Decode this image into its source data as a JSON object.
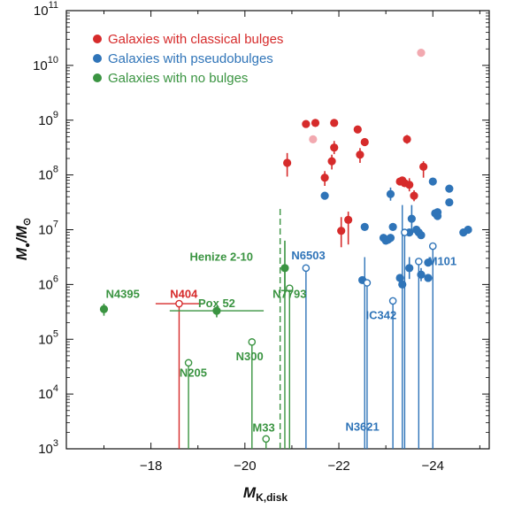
{
  "chart_data": {
    "type": "scatter",
    "xlabel": "M",
    "xlabel_sub": "K,disk",
    "ylabel_main": "M",
    "ylabel_sub1": "●",
    "ylabel_sep": "/M",
    "ylabel_sub2": "⊙",
    "xlim": [
      -16.2,
      -25.2
    ],
    "ylim_log10": [
      3,
      11
    ],
    "x_ticks": [
      {
        "value": -18,
        "label": "−18"
      },
      {
        "value": -20,
        "label": "−20"
      },
      {
        "value": -22,
        "label": "−22"
      },
      {
        "value": -24,
        "label": "−24"
      }
    ],
    "y_ticks": [
      {
        "exp": 3,
        "base": "10",
        "sup": "3"
      },
      {
        "exp": 4,
        "base": "10",
        "sup": "4"
      },
      {
        "exp": 5,
        "base": "10",
        "sup": "5"
      },
      {
        "exp": 6,
        "base": "10",
        "sup": "6"
      },
      {
        "exp": 7,
        "base": "10",
        "sup": "7"
      },
      {
        "exp": 8,
        "base": "10",
        "sup": "8"
      },
      {
        "exp": 9,
        "base": "10",
        "sup": "9"
      },
      {
        "exp": 10,
        "base": "10",
        "sup": "10"
      },
      {
        "exp": 11,
        "base": "10",
        "sup": "11"
      }
    ],
    "legend_position": "top-left",
    "colors": {
      "classical": "#d62b2b",
      "classical_light": "#f2a9b0",
      "pseudo": "#2f74b8",
      "nobulge": "#3a9441"
    },
    "series": [
      {
        "name": "Galaxies with classical bulges",
        "key": "classical",
        "points": [
          {
            "x": -20.9,
            "log_y": 8.22,
            "err_lo": 0.25,
            "err_hi": 0.18
          },
          {
            "x": -21.3,
            "log_y": 8.93
          },
          {
            "x": -21.5,
            "log_y": 8.95
          },
          {
            "x": -21.9,
            "log_y": 8.95
          },
          {
            "x": -22.4,
            "log_y": 8.83
          },
          {
            "x": -22.55,
            "log_y": 8.6
          },
          {
            "x": -21.9,
            "log_y": 8.5,
            "err_lo": 0.12,
            "err_hi": 0.12
          },
          {
            "x": -21.85,
            "log_y": 8.25,
            "err_lo": 0.15,
            "err_hi": 0.12
          },
          {
            "x": -22.45,
            "log_y": 8.37,
            "err_lo": 0.15,
            "err_hi": 0.12
          },
          {
            "x": -23.45,
            "log_y": 8.65,
            "err_lo": 0.08,
            "err_hi": 0.08
          },
          {
            "x": -21.7,
            "log_y": 7.95,
            "err_lo": 0.15,
            "err_hi": 0.12
          },
          {
            "x": -23.3,
            "log_y": 7.88
          },
          {
            "x": -23.4,
            "log_y": 7.85
          },
          {
            "x": -23.5,
            "log_y": 7.82,
            "err_lo": 0.12,
            "err_hi": 0.12
          },
          {
            "x": -23.6,
            "log_y": 7.62,
            "err_lo": 0.1,
            "err_hi": 0.1
          },
          {
            "x": -23.8,
            "log_y": 8.15,
            "err_lo": 0.2,
            "err_hi": 0.1
          },
          {
            "x": -22.2,
            "log_y": 7.18,
            "err_lo": 0.45,
            "err_hi": 0.15
          },
          {
            "x": -22.05,
            "log_y": 6.98,
            "err_lo": 0.3,
            "err_hi": 0.25
          },
          {
            "x": -23.35,
            "log_y": 7.9
          },
          {
            "x": -23.75,
            "log_y": 10.23,
            "light": true
          },
          {
            "x": -21.45,
            "log_y": 8.65,
            "light": true
          }
        ]
      },
      {
        "name": "Galaxies with pseudobulges",
        "key": "pseudo",
        "points": [
          {
            "x": -21.7,
            "log_y": 7.62
          },
          {
            "x": -22.55,
            "log_y": 7.05
          },
          {
            "x": -22.95,
            "log_y": 6.85
          },
          {
            "x": -23.0,
            "log_y": 6.8
          },
          {
            "x": -23.05,
            "log_y": 6.82
          },
          {
            "x": -23.1,
            "log_y": 6.85
          },
          {
            "x": -23.15,
            "log_y": 7.05
          },
          {
            "x": -23.5,
            "log_y": 6.95
          },
          {
            "x": -23.65,
            "log_y": 7.0
          },
          {
            "x": -23.7,
            "log_y": 6.95
          },
          {
            "x": -23.75,
            "log_y": 6.9
          },
          {
            "x": -23.1,
            "log_y": 7.65,
            "err_lo": 0.12,
            "err_hi": 0.12
          },
          {
            "x": -24.0,
            "log_y": 7.88
          },
          {
            "x": -24.05,
            "log_y": 7.3
          },
          {
            "x": -24.1,
            "log_y": 7.25
          },
          {
            "x": -24.1,
            "log_y": 7.32
          },
          {
            "x": -24.35,
            "log_y": 7.75
          },
          {
            "x": -24.35,
            "log_y": 7.5
          },
          {
            "x": -24.65,
            "log_y": 6.95
          },
          {
            "x": -24.75,
            "log_y": 7.0
          },
          {
            "x": -22.5,
            "log_y": 6.08
          },
          {
            "x": -23.3,
            "log_y": 6.12
          },
          {
            "x": -23.5,
            "log_y": 6.3,
            "err_lo": 0.2,
            "err_hi": 0.2
          },
          {
            "x": -23.75,
            "log_y": 6.18,
            "err_lo": 0.12,
            "err_hi": 0.12
          },
          {
            "x": -23.9,
            "log_y": 6.4
          },
          {
            "x": -23.55,
            "log_y": 7.2,
            "err_lo": 0.2,
            "err_hi": 0.25
          },
          {
            "x": -23.35,
            "log_y": 6.0
          },
          {
            "x": -23.9,
            "log_y": 6.12
          }
        ],
        "upper_limits": [
          {
            "x": -21.3,
            "log_y": 6.3
          },
          {
            "x": -22.6,
            "log_y": 6.03
          },
          {
            "x": -23.15,
            "log_y": 5.7
          },
          {
            "x": -23.4,
            "log_y": 6.95
          },
          {
            "x": -23.7,
            "log_y": 6.42
          },
          {
            "x": -24.0,
            "log_y": 6.7
          }
        ],
        "vertical_lines": [
          {
            "x": -21.3,
            "top": 6.3
          },
          {
            "x": -22.55,
            "top": 6.5
          },
          {
            "x": -22.6,
            "top": 6.03
          },
          {
            "x": -23.15,
            "top": 5.7
          },
          {
            "x": -23.35,
            "top": 7.45
          },
          {
            "x": -23.4,
            "top": 6.95
          },
          {
            "x": -23.7,
            "top": 6.42
          },
          {
            "x": -24.0,
            "top": 6.7
          }
        ]
      },
      {
        "name": "Galaxies with no bulges",
        "key": "nobulge",
        "points": [
          {
            "x": -17.0,
            "log_y": 5.55,
            "err_lo": 0.12,
            "err_hi": 0.1
          },
          {
            "x": -20.85,
            "log_y": 6.3,
            "err_lo": 0.5,
            "err_hi": 0.5
          },
          {
            "x": -19.4,
            "log_y": 5.52,
            "err_lo": 0.12,
            "err_hi": 0.08,
            "xerr_lo": 1.0,
            "xerr_hi": 1.0
          }
        ],
        "upper_limits": [
          {
            "x": -18.8,
            "log_y": 4.57
          },
          {
            "x": -20.15,
            "log_y": 4.95
          },
          {
            "x": -20.95,
            "log_y": 5.93
          },
          {
            "x": -20.45,
            "log_y": 3.18
          }
        ],
        "vertical_lines": [
          {
            "x": -18.8,
            "top": 4.57
          },
          {
            "x": -20.15,
            "top": 4.95
          },
          {
            "x": -20.95,
            "top": 5.93
          },
          {
            "x": -20.45,
            "top": 3.18
          },
          {
            "x": -20.75,
            "top": 7.4,
            "dashed": true
          },
          {
            "x": -20.85,
            "top": 6.3
          }
        ]
      },
      {
        "name": "N404",
        "key": "classical",
        "upper_limits": [
          {
            "x": -18.6,
            "log_y": 5.65,
            "xerr_lo": 0.5,
            "xerr_hi": 0.5
          }
        ],
        "vertical_lines": [
          {
            "x": -18.6,
            "top": 5.65
          }
        ]
      }
    ],
    "annotations": [
      {
        "text": "N4395",
        "x": -17.4,
        "log_y": 5.82,
        "key": "nobulge"
      },
      {
        "text": "N404",
        "x": -18.7,
        "log_y": 5.82,
        "key": "classical"
      },
      {
        "text": "Pox 52",
        "x": -19.4,
        "log_y": 5.65,
        "key": "nobulge"
      },
      {
        "text": "Henize 2-10",
        "x": -19.5,
        "log_y": 6.5,
        "key": "nobulge"
      },
      {
        "text": "N7793",
        "x": -20.95,
        "log_y": 5.82,
        "key": "nobulge"
      },
      {
        "text": "N300",
        "x": -20.1,
        "log_y": 4.68,
        "key": "nobulge"
      },
      {
        "text": "N205",
        "x": -18.9,
        "log_y": 4.38,
        "key": "nobulge"
      },
      {
        "text": "M33",
        "x": -20.4,
        "log_y": 3.38,
        "key": "nobulge"
      },
      {
        "text": "N6503",
        "x": -21.35,
        "log_y": 6.52,
        "key": "pseudo"
      },
      {
        "text": "IC342",
        "x": -22.9,
        "log_y": 5.43,
        "key": "pseudo"
      },
      {
        "text": "M101",
        "x": -24.2,
        "log_y": 6.42,
        "key": "pseudo"
      },
      {
        "text": "N3621",
        "x": -22.5,
        "log_y": 3.4,
        "key": "pseudo"
      }
    ]
  }
}
